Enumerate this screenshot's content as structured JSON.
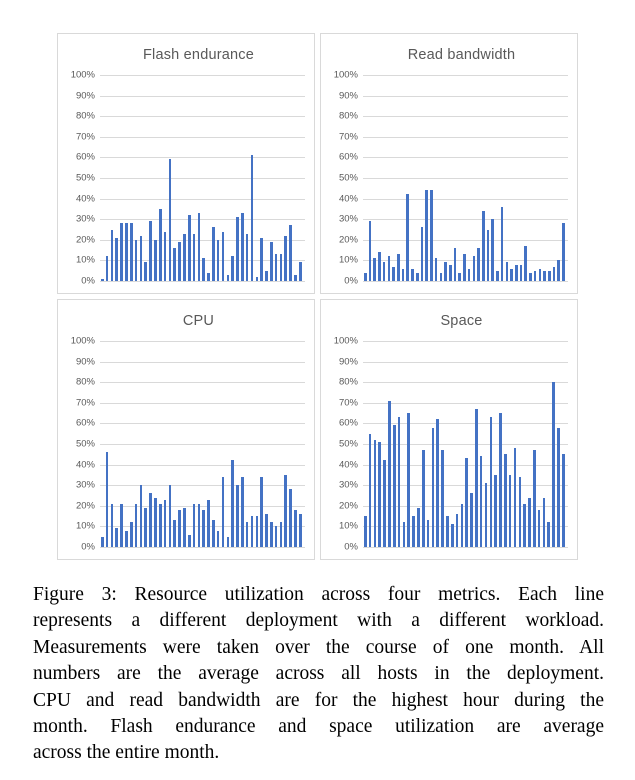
{
  "colors": {
    "bar": "#4472C4",
    "gridline": "#D9D9D9",
    "chart_border": "#D9D9D9",
    "chart_text": "#595959",
    "caption_text": "#000000"
  },
  "figure": {
    "caption_lines": [
      "Figure 3: Resource utilization across four metrics. Each line",
      "represents a different deployment with a different workload.",
      "Measurements were taken over the course of one month. All",
      "numbers are the average across all hosts in the deployment.",
      "CPU and read bandwidth are for the highest hour during the",
      "month. Flash endurance and space utilization are average",
      "across the entire month."
    ]
  },
  "chart_data": [
    {
      "type": "bar",
      "title": "Flash endurance",
      "xlabel": "",
      "ylabel": "",
      "ylim": [
        0,
        100
      ],
      "ytick_step": 10,
      "tick_suffix": "%",
      "grid": true,
      "x_axis_labels": "none",
      "legend": "none",
      "values": [
        1,
        12,
        25,
        21,
        28,
        28,
        28,
        20,
        22,
        9,
        29,
        20,
        35,
        24,
        59,
        16,
        19,
        23,
        32,
        23,
        33,
        11,
        4,
        26,
        20,
        24,
        3,
        12,
        31,
        33,
        23,
        61,
        2,
        21,
        5,
        19,
        13,
        13,
        22,
        27,
        3,
        9
      ]
    },
    {
      "type": "bar",
      "title": "Read bandwidth",
      "xlabel": "",
      "ylabel": "",
      "ylim": [
        0,
        100
      ],
      "ytick_step": 10,
      "tick_suffix": "%",
      "grid": true,
      "x_axis_labels": "none",
      "legend": "none",
      "values": [
        4,
        29,
        11,
        14,
        9,
        12,
        7,
        13,
        6,
        42,
        6,
        4,
        26,
        44,
        44,
        11,
        4,
        9,
        8,
        16,
        4,
        13,
        6,
        12,
        16,
        34,
        25,
        30,
        5,
        36,
        9,
        6,
        8,
        8,
        17,
        4,
        5,
        6,
        5,
        5,
        7,
        10,
        28
      ]
    },
    {
      "type": "bar",
      "title": "CPU",
      "xlabel": "",
      "ylabel": "",
      "ylim": [
        0,
        100
      ],
      "ytick_step": 10,
      "tick_suffix": "%",
      "grid": true,
      "x_axis_labels": "none",
      "legend": "none",
      "values": [
        5,
        46,
        21,
        9,
        21,
        8,
        12,
        21,
        30,
        19,
        26,
        24,
        21,
        23,
        30,
        13,
        18,
        19,
        6,
        21,
        21,
        18,
        23,
        13,
        8,
        34,
        5,
        42,
        30,
        34,
        12,
        15,
        15,
        34,
        16,
        12,
        10,
        12,
        35,
        28,
        18,
        16
      ]
    },
    {
      "type": "bar",
      "title": "Space",
      "xlabel": "",
      "ylabel": "",
      "ylim": [
        0,
        100
      ],
      "ytick_step": 10,
      "tick_suffix": "%",
      "grid": true,
      "x_axis_labels": "none",
      "legend": "none",
      "values": [
        15,
        55,
        52,
        51,
        42,
        71,
        59,
        63,
        12,
        65,
        15,
        19,
        47,
        13,
        58,
        62,
        47,
        15,
        11,
        16,
        21,
        43,
        26,
        67,
        44,
        31,
        63,
        35,
        65,
        45,
        35,
        48,
        34,
        21,
        24,
        47,
        18,
        24,
        12,
        80,
        58,
        45
      ]
    }
  ]
}
